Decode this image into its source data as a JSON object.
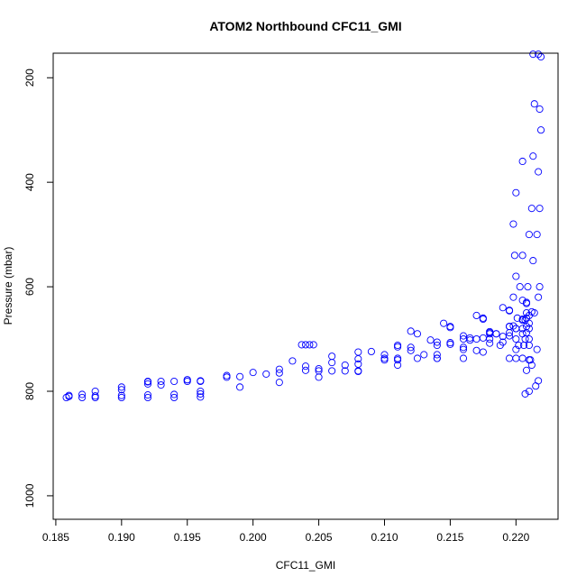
{
  "chart_data": {
    "type": "scatter",
    "title": "ATOM2 Northbound CFC11_GMI",
    "xlabel": "CFC11_GMI",
    "ylabel": "Pressure (mbar)",
    "xlim": [
      0.1848,
      0.2232
    ],
    "ylim": [
      1045,
      153
    ],
    "y_reversed": true,
    "grid": false,
    "legend": "none",
    "marker": "open-circle",
    "color": "#0000ff",
    "x_ticks": [
      {
        "value": 0.185,
        "label": "0.185"
      },
      {
        "value": 0.19,
        "label": "0.190"
      },
      {
        "value": 0.195,
        "label": "0.195"
      },
      {
        "value": 0.2,
        "label": "0.200"
      },
      {
        "value": 0.205,
        "label": "0.205"
      },
      {
        "value": 0.21,
        "label": "0.210"
      },
      {
        "value": 0.215,
        "label": "0.215"
      },
      {
        "value": 0.22,
        "label": "0.220"
      }
    ],
    "y_ticks": [
      {
        "value": 200,
        "label": "200"
      },
      {
        "value": 400,
        "label": "400"
      },
      {
        "value": 600,
        "label": "600"
      },
      {
        "value": 800,
        "label": "800"
      },
      {
        "value": 1000,
        "label": "1000"
      }
    ],
    "series": [
      {
        "name": "",
        "segments": [
          {
            "x": [
              0.2213,
              0.2214,
              0.2213,
              0.2212,
              0.2213,
              0.2214,
              0.2212,
              0.221
            ],
            "y": [
              155,
              250,
              350,
              450,
              550,
              650,
              750,
              800
            ]
          },
          {
            "x": [
              0.2217,
              0.2218,
              0.2217,
              0.2216,
              0.2217,
              0.2216,
              0.2215
            ],
            "y": [
              155,
              260,
              380,
              500,
              620,
              720,
              790
            ]
          },
          {
            "x": [
              0.2219,
              0.2219,
              0.2218,
              0.2218,
              0.2217
            ],
            "y": [
              160,
              300,
              450,
              600,
              780
            ]
          },
          {
            "x": [
              0.2205,
              0.22,
              0.2198,
              0.2199,
              0.2203,
              0.2208,
              0.221
            ],
            "y": [
              360,
              420,
              480,
              540,
              600,
              650,
              700
            ]
          },
          {
            "x": [
              0.221,
              0.2205,
              0.22,
              0.2198,
              0.2201,
              0.2207,
              0.2211
            ],
            "y": [
              500,
              540,
              580,
              620,
              660,
              700,
              740
            ]
          },
          {
            "x": [
              0.219,
              0.22,
              0.221
            ],
            "y": [
              695,
              720,
              740
            ]
          },
          {
            "x": [
              0.2209,
              0.221,
              0.2208,
              0.2207
            ],
            "y": [
              600,
              680,
              760,
              805
            ]
          },
          {
            "x": [
              0.1858,
              0.187,
              0.188,
              0.19,
              0.192,
              0.194,
              0.196
            ],
            "y": [
              812,
              812,
              812,
              812,
              812,
              812,
              811
            ]
          },
          {
            "x": [
              0.186,
              0.188,
              0.19,
              0.192,
              0.195,
              0.198,
              0.2,
              0.202,
              0.204,
              0.206,
              0.208,
              0.21,
              0.212,
              0.214,
              0.216,
              0.218,
              0.2195,
              0.2205,
              0.221
            ],
            "y": [
              808,
              800,
              792,
              786,
              778,
              770,
              764,
              758,
              752,
              745,
              738,
              730,
              722,
              712,
              700,
              688,
              676,
              664,
              655
            ]
          },
          {
            "x": [
              0.187,
              0.19,
              0.193,
              0.196,
              0.199,
              0.202,
              0.205,
              0.208,
              0.211,
              0.214,
              0.216,
              0.218,
              0.2195,
              0.2205
            ],
            "y": [
              806,
              797,
              788,
              780,
              772,
              765,
              757,
              748,
              740,
              730,
              720,
              708,
              694,
              680
            ]
          },
          {
            "x": [
              0.192,
              0.195,
              0.198,
              0.201,
              0.204,
              0.207,
              0.21,
              0.213,
              0.216,
              0.218,
              0.22
            ],
            "y": [
              782,
              778,
              773,
              767,
              760,
              750,
              740,
              730,
              716,
              700,
              680
            ]
          },
          {
            "x": [
              0.196,
              0.199,
              0.202,
              0.205,
              0.208,
              0.211,
              0.214,
              0.217,
              0.219,
              0.2205
            ],
            "y": [
              800,
              792,
              783,
              773,
              762,
              750,
              737,
              722,
              706,
              690
            ]
          },
          {
            "x": [
              0.203,
              0.206,
              0.209,
              0.212,
              0.215,
              0.2175,
              0.2195,
              0.2208
            ],
            "y": [
              742,
              733,
              724,
              716,
              707,
              698,
              688,
              676
            ]
          },
          {
            "x": [
              0.208,
              0.211,
              0.214,
              0.2165,
              0.2185,
              0.22,
              0.221
            ],
            "y": [
              725,
              715,
              706,
              698,
              690,
              680,
              670
            ]
          },
          {
            "x": [
              0.211,
              0.2135,
              0.216,
              0.218,
              0.2195,
              0.2207
            ],
            "y": [
              712,
              702,
              694,
              686,
              676,
              664
            ]
          },
          {
            "x": [
              0.215,
              0.217,
              0.2185,
              0.2198,
              0.2208
            ],
            "y": [
              710,
              700,
              690,
              675,
              660
            ]
          },
          {
            "x": [
              0.2165,
              0.218,
              0.2195,
              0.2205,
              0.2212
            ],
            "y": [
              702,
              690,
              676,
              662,
              648
            ]
          },
          {
            "x": [
              0.2175,
              0.2188,
              0.22,
              0.2208
            ],
            "y": [
              725,
              712,
              700,
              688
            ]
          },
          {
            "x": [
              0.212,
              0.2145,
              0.217,
              0.219,
              0.2205
            ],
            "y": [
              685,
              670,
              655,
              640,
              626
            ]
          },
          {
            "x": [
              0.2125,
              0.215,
              0.2175,
              0.2195,
              0.2208
            ],
            "y": [
              690,
              678,
              662,
              646,
              632
            ]
          },
          {
            "x": [
              0.215,
              0.2175,
              0.2195,
              0.2208
            ],
            "y": [
              676,
              660,
              645,
              630
            ]
          },
          {
            "x": [
              0.186,
              0.188,
              0.19,
              0.192,
              0.194,
              0.196
            ],
            "y": [
              810,
              809,
              808,
              807,
              806,
              805
            ]
          },
          {
            "x": [
              0.192,
              0.193,
              0.194,
              0.195,
              0.196
            ],
            "y": [
              781,
              781,
              781,
              781,
              781
            ]
          },
          {
            "x": [
              0.2037,
              0.204,
              0.2043,
              0.2046
            ],
            "y": [
              711,
              711,
              711,
              711
            ]
          },
          {
            "x": [
              0.205,
              0.206,
              0.207,
              0.208
            ],
            "y": [
              761,
              761,
              761,
              761
            ]
          },
          {
            "x": [
              0.21,
              0.211,
              0.2125,
              0.214,
              0.216
            ],
            "y": [
              737,
              737,
              737,
              737,
              737
            ]
          },
          {
            "x": [
              0.2195,
              0.22,
              0.2205
            ],
            "y": [
              737,
              737,
              737
            ]
          },
          {
            "x": [
              0.2202,
              0.2206,
              0.221
            ],
            "y": [
              712,
              712,
              712
            ]
          }
        ]
      }
    ]
  }
}
